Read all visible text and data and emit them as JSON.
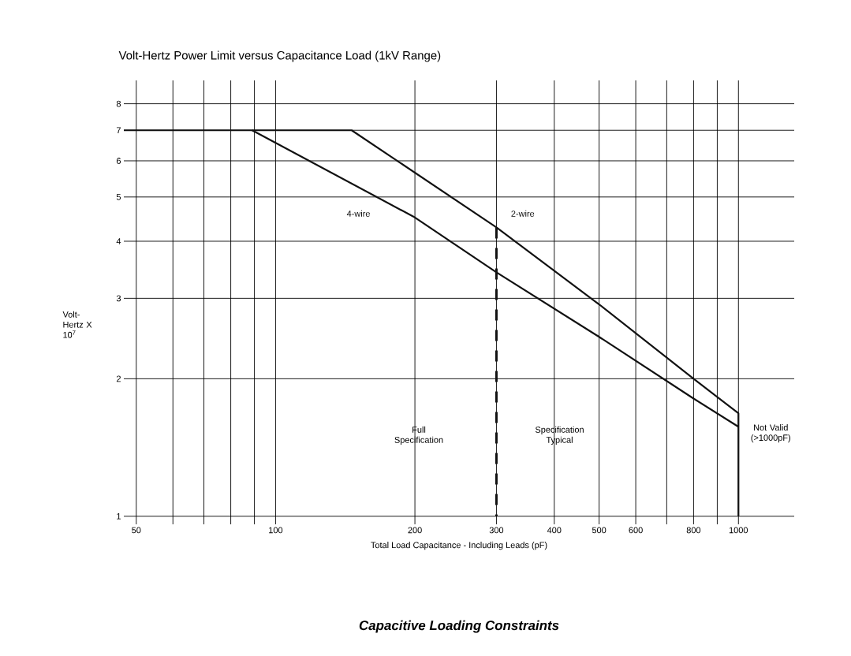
{
  "chart_data": {
    "type": "line",
    "title": "Volt-Hertz Power Limit versus Capacitance Load (1kV Range)",
    "xlabel": "Total Load Capacitance - Including Leads (pF)",
    "ylabel": "Volt-Hertz X 10$^{7}$",
    "log": "xy",
    "grid": true,
    "xlim": [
      47,
      1320
    ],
    "ylim": [
      0.96,
      9.0
    ],
    "xticks": [
      50,
      {
        "value": 60,
        "label": null
      },
      {
        "value": 70,
        "label": null
      },
      {
        "value": 80,
        "label": null
      },
      {
        "value": 90,
        "label": null
      },
      100,
      200,
      300,
      400,
      500,
      600,
      {
        "value": 700,
        "label": null
      },
      800,
      {
        "value": 900,
        "label": null
      },
      1000
    ],
    "yticks": [
      1,
      2,
      3,
      4,
      5,
      6,
      7,
      8
    ],
    "series": [
      {
        "name": "2-wire",
        "color": "#111111",
        "x": [
          47,
          146,
          300,
          500,
          800,
          1000,
          1000
        ],
        "values": [
          7,
          7,
          4.29,
          2.91,
          2.0,
          1.68,
          1
        ]
      },
      {
        "name": "4-wire",
        "color": "#111111",
        "x": [
          89,
          200,
          300,
          500,
          800,
          1000
        ],
        "values": [
          7,
          4.51,
          3.42,
          2.47,
          1.81,
          1.57
        ]
      },
      {
        "color": "#111111",
        "line_style": "dashed",
        "x": [
          300,
          300
        ],
        "values": [
          4.29,
          1
        ]
      }
    ],
    "annotations": [
      "Full Specification",
      "Specification Typical",
      "Not Valid (>1000pF)",
      "Capacitive Loading Constraints"
    ]
  }
}
